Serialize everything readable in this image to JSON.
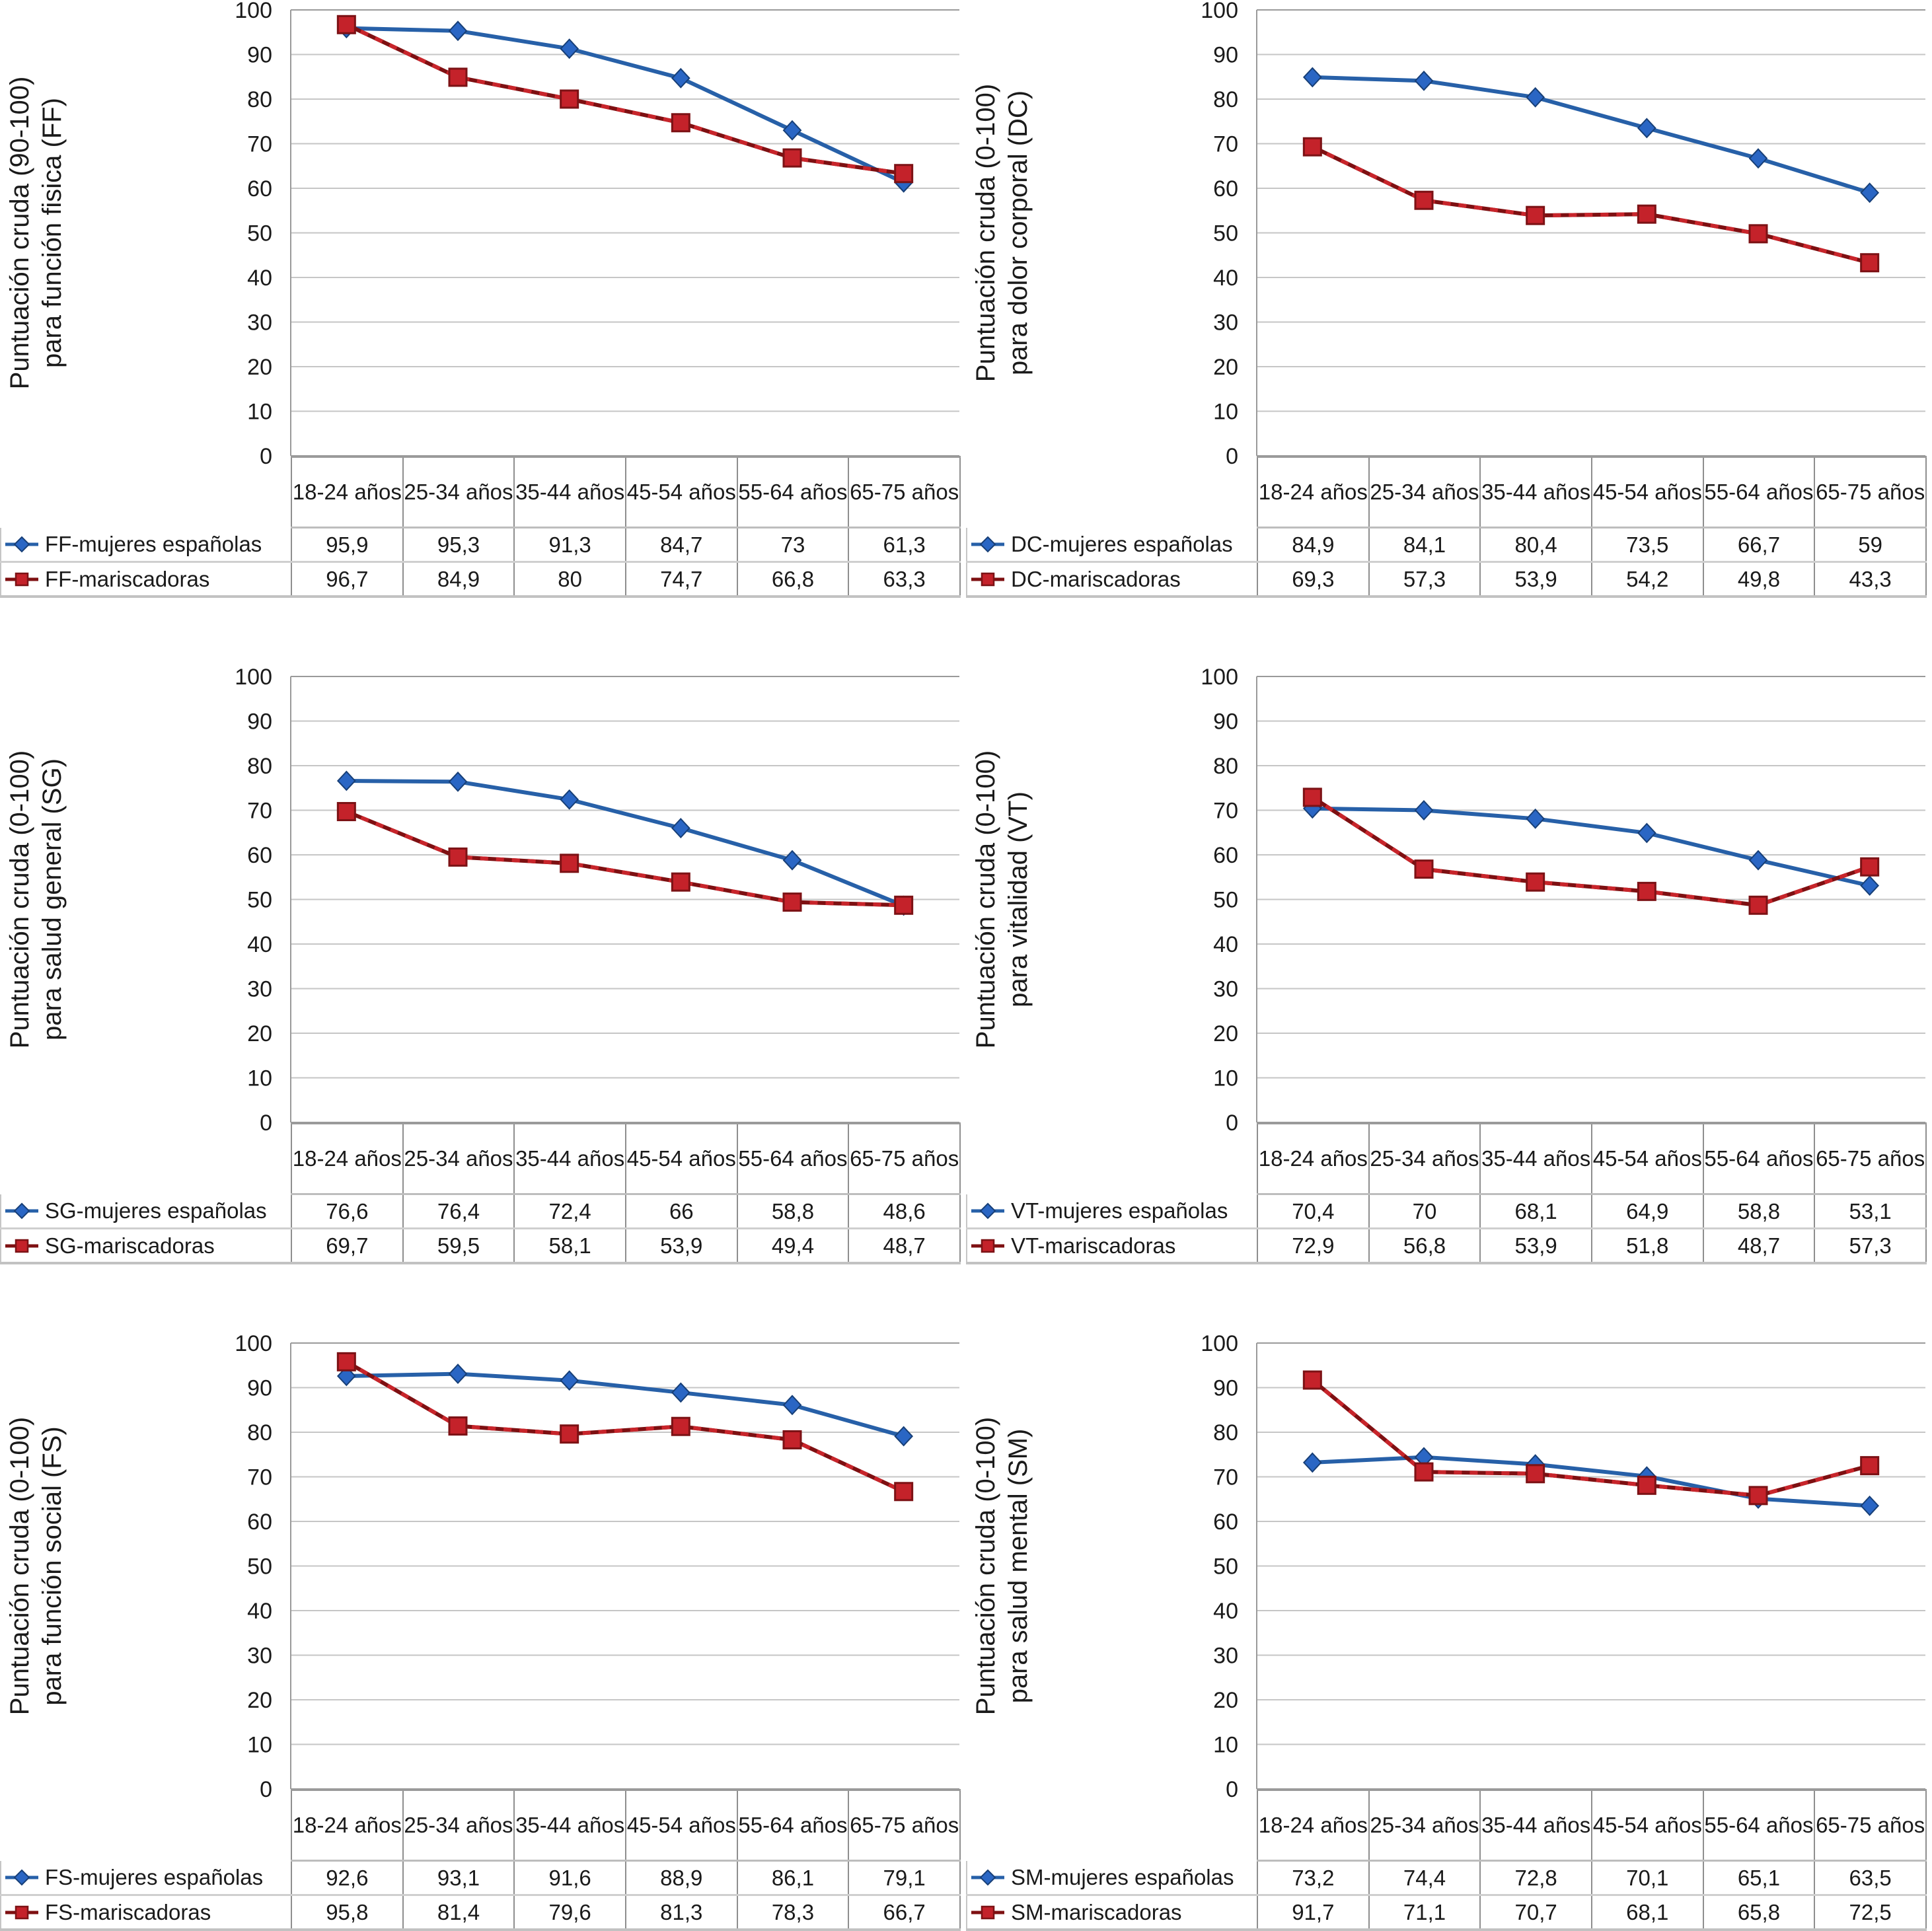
{
  "chart_data": {
    "type": "line",
    "categories": [
      "18-24 años",
      "25-34 años",
      "35-44 años",
      "45-54 años",
      "55-64 años",
      "65-75 años"
    ],
    "axis": {
      "ymin": 0,
      "ymax": 100,
      "ystep": 10,
      "grid": "horizontal"
    },
    "legend_position": "table-below-left",
    "marker_shapes": [
      "diamond",
      "square"
    ],
    "colors": {
      "series1_line": "#2760a8",
      "series1_fill": "#2a66c4",
      "series1_edge": "#173f77",
      "series2_line_dark": "#7e1012",
      "series2_line_bright": "#c8252b",
      "series2_fill": "#c4222a",
      "series2_edge": "#7c1215",
      "gridline": "#c6c6c6",
      "axis_line": "#9a9a9a",
      "text": "#1a1a1a"
    },
    "charts": [
      {
        "id": "FF",
        "ylabel": "Puntuación cruda (90-100)\npara función fisica (FF)",
        "series": [
          {
            "name": "FF-mujeres españolas",
            "values": [
              "95,9",
              "95,3",
              "91,3",
              "84,7",
              "73",
              "61,3"
            ]
          },
          {
            "name": "FF-mariscadoras",
            "values": [
              "96,7",
              "84,9",
              "80",
              "74,7",
              "66,8",
              "63,3"
            ]
          }
        ]
      },
      {
        "id": "DC",
        "ylabel": "Puntuación cruda (0-100)\npara dolor corporal (DC)",
        "series": [
          {
            "name": "DC-mujeres españolas",
            "values": [
              "84,9",
              "84,1",
              "80,4",
              "73,5",
              "66,7",
              "59"
            ]
          },
          {
            "name": "DC-mariscadoras",
            "values": [
              "69,3",
              "57,3",
              "53,9",
              "54,2",
              "49,8",
              "43,3"
            ]
          }
        ]
      },
      {
        "id": "SG",
        "ylabel": "Puntuación cruda (0-100)\npara salud general (SG)",
        "series": [
          {
            "name": "SG-mujeres españolas",
            "values": [
              "76,6",
              "76,4",
              "72,4",
              "66",
              "58,8",
              "48,6"
            ]
          },
          {
            "name": "SG-mariscadoras",
            "values": [
              "69,7",
              "59,5",
              "58,1",
              "53,9",
              "49,4",
              "48,7"
            ]
          }
        ]
      },
      {
        "id": "VT",
        "ylabel": "Puntuación cruda (0-100)\npara vitalidad (VT)",
        "series": [
          {
            "name": "VT-mujeres españolas",
            "values": [
              "70,4",
              "70",
              "68,1",
              "64,9",
              "58,8",
              "53,1"
            ]
          },
          {
            "name": "VT-mariscadoras",
            "values": [
              "72,9",
              "56,8",
              "53,9",
              "51,8",
              "48,7",
              "57,3"
            ]
          }
        ]
      },
      {
        "id": "FS",
        "ylabel": "Puntuación cruda (0-100)\npara función social (FS)",
        "series": [
          {
            "name": "FS-mujeres españolas",
            "values": [
              "92,6",
              "93,1",
              "91,6",
              "88,9",
              "86,1",
              "79,1"
            ]
          },
          {
            "name": "FS-mariscadoras",
            "values": [
              "95,8",
              "81,4",
              "79,6",
              "81,3",
              "78,3",
              "66,7"
            ]
          }
        ]
      },
      {
        "id": "SM",
        "ylabel": "Puntuación cruda (0-100)\npara salud mental (SM)",
        "series": [
          {
            "name": "SM-mujeres españolas",
            "values": [
              "73,2",
              "74,4",
              "72,8",
              "70,1",
              "65,1",
              "63,5"
            ]
          },
          {
            "name": "SM-mariscadoras",
            "values": [
              "91,7",
              "71,1",
              "70,7",
              "68,1",
              "65,8",
              "72,5"
            ]
          }
        ]
      }
    ]
  }
}
